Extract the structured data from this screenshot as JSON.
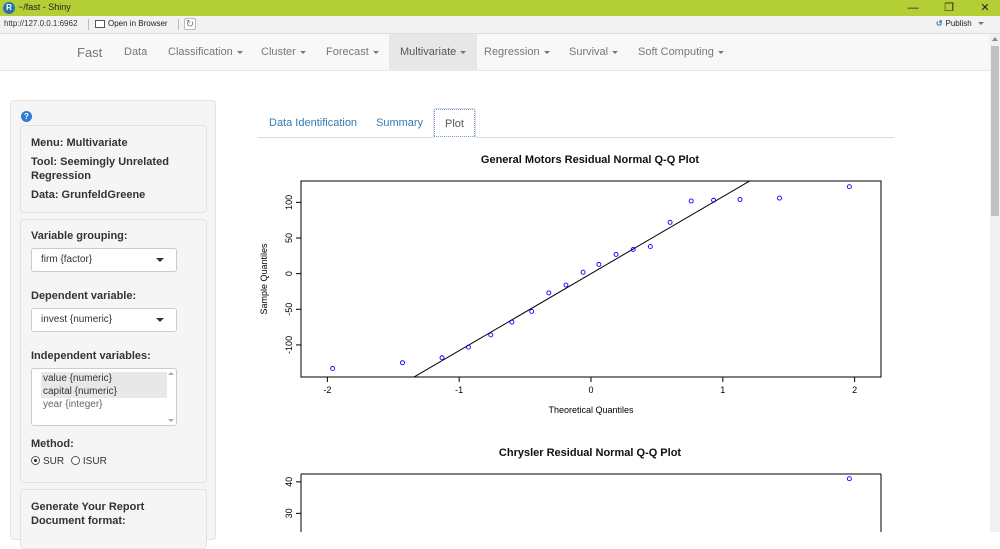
{
  "window": {
    "title": "~/fast - Shiny",
    "app_icon": "R"
  },
  "addressbar": {
    "url": "http://127.0.0.1:6962",
    "open_label": "Open in Browser",
    "publish_label": "Publish"
  },
  "navbar": {
    "brand": "Fast",
    "items": [
      {
        "label": "Data",
        "dropdown": false
      },
      {
        "label": "Classification",
        "dropdown": true
      },
      {
        "label": "Cluster",
        "dropdown": true
      },
      {
        "label": "Forecast",
        "dropdown": true
      },
      {
        "label": "Multivariate",
        "dropdown": true,
        "active": true
      },
      {
        "label": "Regression",
        "dropdown": true
      },
      {
        "label": "Survival",
        "dropdown": true
      },
      {
        "label": "Soft Computing",
        "dropdown": true
      }
    ]
  },
  "sidebar": {
    "help": "?",
    "menu": "Menu: Multivariate",
    "tool": "Tool: Seemingly Unrelated Regression",
    "data": "Data: GrunfeldGreene",
    "grouping_label": "Variable grouping:",
    "grouping_value": "firm {factor}",
    "dependent_label": "Dependent variable:",
    "dependent_value": "invest {numeric}",
    "independent_label": "Independent variables:",
    "independent_options": [
      "value {numeric}",
      "capital {numeric}",
      "year {integer}"
    ],
    "method_label": "Method:",
    "methods": [
      "SUR",
      "ISUR"
    ],
    "method_selected": "SUR",
    "report_title": "Generate Your Report",
    "report_format_label": "Document format:"
  },
  "tabs": [
    "Data Identification",
    "Summary",
    "Plot"
  ],
  "active_tab": "Plot",
  "colors": {
    "accent": "#b4cf35",
    "link": "#337ab7",
    "points": "#0000ff"
  },
  "chart_data": [
    {
      "type": "scatter",
      "title": "General Motors Residual Normal Q-Q Plot",
      "xlabel": "Theoretical Quantiles",
      "ylabel": "Sample Quantiles",
      "xlim": [
        -2.2,
        2.2
      ],
      "ylim": [
        -145,
        130
      ],
      "xticks": [
        -2,
        -1,
        0,
        1,
        2
      ],
      "yticks": [
        -100,
        -50,
        0,
        50,
        100
      ],
      "x": [
        -1.96,
        -1.43,
        -1.13,
        -0.93,
        -0.76,
        -0.6,
        -0.45,
        -0.32,
        -0.19,
        -0.06,
        0.06,
        0.19,
        0.32,
        0.45,
        0.6,
        0.76,
        0.93,
        1.13,
        1.43,
        1.96
      ],
      "y": [
        -133,
        -125,
        -118,
        -103,
        -86,
        -68,
        -53,
        -27,
        -16,
        2,
        13,
        27,
        34,
        38,
        72,
        102,
        103,
        104,
        106,
        122
      ],
      "qqline": {
        "intercept": 0,
        "slope": 108
      },
      "grid": false
    },
    {
      "type": "scatter",
      "title": "Chrysler Residual Normal Q-Q Plot",
      "xlabel": "",
      "ylabel": "",
      "yticks": [
        30,
        40
      ],
      "x": [
        1.96
      ],
      "y": [
        41
      ],
      "grid": false
    }
  ]
}
